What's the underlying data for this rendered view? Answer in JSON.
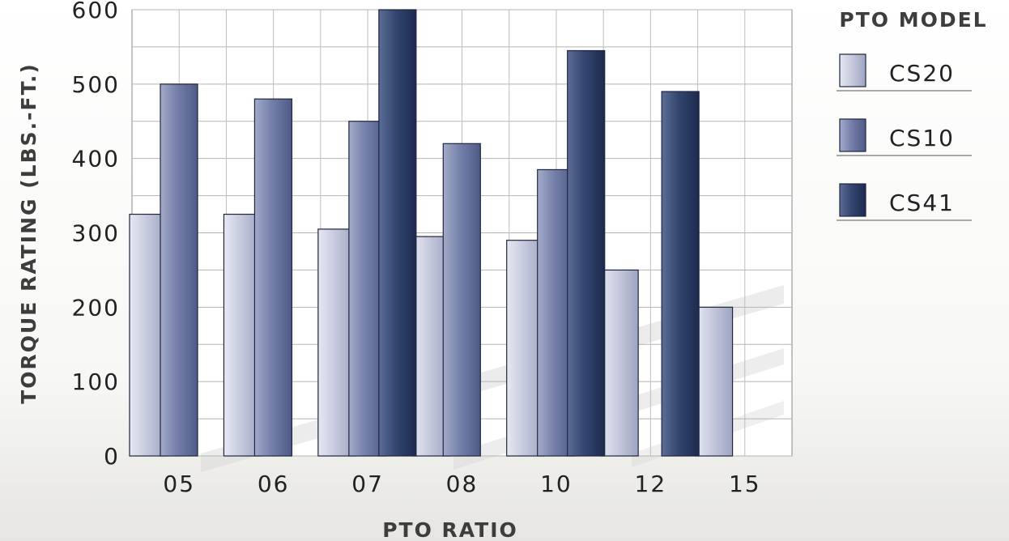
{
  "chart_data": {
    "type": "bar",
    "categories": [
      "05",
      "06",
      "07",
      "08",
      "10",
      "12",
      "15"
    ],
    "series": [
      {
        "name": "CS20",
        "values": [
          325,
          325,
          305,
          295,
          290,
          250,
          200
        ],
        "color": "#c3c7dc"
      },
      {
        "name": "CS10",
        "values": [
          500,
          480,
          450,
          420,
          385,
          null,
          null
        ],
        "color": "#7480a9"
      },
      {
        "name": "CS41",
        "values": [
          null,
          null,
          600,
          null,
          545,
          490,
          null
        ],
        "color": "#2e416d"
      }
    ],
    "xlabel": "PTO RATIO",
    "ylabel": "TORQUE RATING (LBS.-FT.)",
    "ylim": [
      0,
      600
    ],
    "yticks": [
      0,
      100,
      200,
      300,
      400,
      500,
      600
    ],
    "legend_title": "PTO MODEL",
    "legend_position": "right",
    "grid": true
  }
}
